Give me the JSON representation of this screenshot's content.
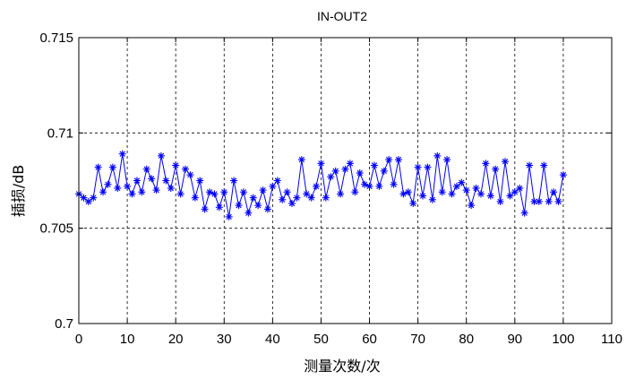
{
  "chart_data": {
    "type": "line",
    "title": "IN-OUT2",
    "xlabel": "测量次数/次",
    "ylabel": "插损/dB",
    "xlim": [
      0,
      110
    ],
    "ylim": [
      0.7,
      0.715
    ],
    "xticks": [
      0,
      10,
      20,
      30,
      40,
      50,
      60,
      70,
      80,
      90,
      100,
      110
    ],
    "yticks": [
      0.7,
      0.705,
      0.71,
      0.715
    ],
    "xtick_labels": [
      "0",
      "10",
      "20",
      "30",
      "40",
      "50",
      "60",
      "70",
      "80",
      "90",
      "100",
      "110"
    ],
    "ytick_labels": [
      "0.7",
      "0.705",
      "0.71",
      "0.715"
    ],
    "grid": true,
    "grid_style": "dashed",
    "marker": "asterisk",
    "series_color": "#0000ff",
    "series": [
      {
        "x": [
          0,
          1,
          2,
          3,
          4,
          5,
          6,
          7,
          8,
          9,
          10,
          11,
          12,
          13,
          14,
          15,
          16,
          17,
          18,
          19,
          20,
          21,
          22,
          23,
          24,
          25,
          26,
          27,
          28,
          29,
          30,
          31,
          32,
          33,
          34,
          35,
          36,
          37,
          38,
          39,
          40,
          41,
          42,
          43,
          44,
          45,
          46,
          47,
          48,
          49,
          50,
          51,
          52,
          53,
          54,
          55,
          56,
          57,
          58,
          59,
          60,
          61,
          62,
          63,
          64,
          65,
          66,
          67,
          68,
          69,
          70,
          71,
          72,
          73,
          74,
          75,
          76,
          77,
          78,
          79,
          80,
          81,
          82,
          83,
          84,
          85,
          86,
          87,
          88,
          89,
          90,
          91,
          92,
          93,
          94,
          95,
          96,
          97,
          98,
          99,
          100
        ],
        "values": [
          0.7068,
          0.7066,
          0.7064,
          0.7066,
          0.7082,
          0.7069,
          0.7073,
          0.7082,
          0.7071,
          0.7089,
          0.7072,
          0.7068,
          0.7075,
          0.7069,
          0.7081,
          0.7076,
          0.707,
          0.7088,
          0.7075,
          0.7071,
          0.7083,
          0.7068,
          0.7081,
          0.7078,
          0.7066,
          0.7075,
          0.706,
          0.7069,
          0.7068,
          0.7061,
          0.7069,
          0.7056,
          0.7075,
          0.7062,
          0.7069,
          0.7058,
          0.7066,
          0.7062,
          0.707,
          0.706,
          0.7072,
          0.7075,
          0.7065,
          0.7069,
          0.7063,
          0.7066,
          0.7086,
          0.7068,
          0.7066,
          0.7072,
          0.7084,
          0.7066,
          0.7077,
          0.708,
          0.7068,
          0.7081,
          0.7084,
          0.7069,
          0.7079,
          0.7073,
          0.7072,
          0.7083,
          0.7072,
          0.708,
          0.7086,
          0.7073,
          0.7086,
          0.7068,
          0.7069,
          0.7063,
          0.7082,
          0.7067,
          0.7082,
          0.7065,
          0.7088,
          0.7069,
          0.7086,
          0.7068,
          0.7072,
          0.7074,
          0.707,
          0.7062,
          0.7071,
          0.7068,
          0.7084,
          0.7067,
          0.7081,
          0.7064,
          0.7085,
          0.7067,
          0.7069,
          0.7071,
          0.7058,
          0.7083,
          0.7064,
          0.7064,
          0.7083,
          0.7064,
          0.7069,
          0.7064,
          0.7078
        ]
      }
    ]
  }
}
